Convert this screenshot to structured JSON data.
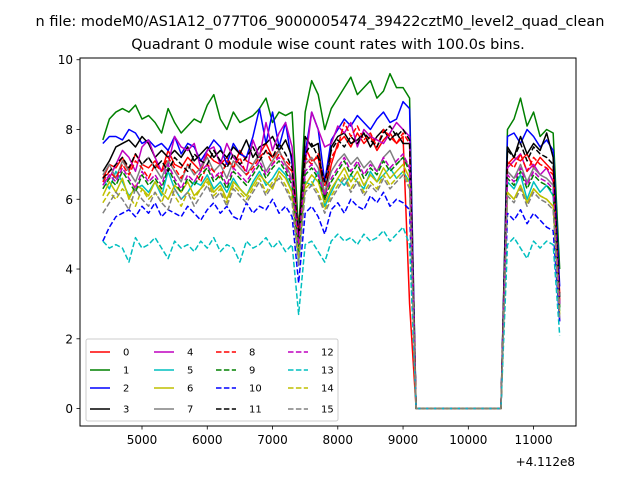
{
  "suptitle": "n file: modeM0/AS1A12_077T06_9000005474_39422cztM0_level2_quad_clean",
  "chart_data": {
    "type": "line",
    "title": "Quadrant 0 module wise count rates with 100.0s bins.",
    "xlabel": "",
    "ylabel": "",
    "x_offset_label": "+4.112e8",
    "xlim": [
      4050,
      11650
    ],
    "ylim": [
      -0.5,
      10.05
    ],
    "xticks": [
      5000,
      6000,
      7000,
      8000,
      9000,
      10000,
      11000
    ],
    "yticks": [
      0,
      2,
      4,
      6,
      8,
      10
    ],
    "grid": false,
    "legend_position": "lower-left",
    "x": [
      4400,
      4500,
      4600,
      4700,
      4800,
      4900,
      5000,
      5100,
      5200,
      5300,
      5400,
      5500,
      5600,
      5700,
      5800,
      5900,
      6000,
      6100,
      6200,
      6300,
      6400,
      6500,
      6600,
      6700,
      6800,
      6900,
      7000,
      7100,
      7200,
      7300,
      7400,
      7500,
      7600,
      7700,
      7800,
      7900,
      8000,
      8100,
      8200,
      8300,
      8400,
      8500,
      8600,
      8700,
      8800,
      8900,
      9000,
      9100,
      9200,
      9300,
      9400,
      9500,
      9600,
      9700,
      9800,
      9900,
      10000,
      10100,
      10200,
      10300,
      10400,
      10500,
      10600,
      10700,
      10800,
      10900,
      11000,
      11100,
      11200,
      11300,
      11400
    ],
    "series": [
      {
        "name": "0",
        "color": "#ff0000",
        "dash": false,
        "values": [
          6.6,
          7.0,
          6.9,
          7.2,
          6.8,
          7.3,
          7.0,
          6.9,
          7.1,
          6.8,
          7.4,
          7.0,
          6.9,
          7.2,
          7.0,
          6.8,
          7.3,
          7.1,
          7.0,
          7.2,
          6.9,
          7.4,
          7.1,
          7.0,
          7.3,
          7.6,
          7.2,
          7.4,
          7.0,
          6.8,
          5.2,
          7.5,
          7.1,
          7.2,
          6.0,
          7.0,
          7.6,
          7.8,
          7.5,
          7.9,
          7.6,
          7.8,
          7.4,
          7.7,
          7.9,
          7.6,
          7.8,
          3.0,
          0,
          0,
          0,
          0,
          0,
          0,
          0,
          0,
          0,
          0,
          0,
          0,
          0,
          0,
          7.0,
          7.2,
          7.1,
          7.3,
          6.9,
          7.2,
          7.0,
          6.8,
          3.3
        ]
      },
      {
        "name": "1",
        "color": "#008000",
        "dash": false,
        "values": [
          7.7,
          8.3,
          8.5,
          8.6,
          8.5,
          8.7,
          8.3,
          8.4,
          8.2,
          7.9,
          8.6,
          8.2,
          7.9,
          8.1,
          8.3,
          8.2,
          8.7,
          9.0,
          8.3,
          8.0,
          8.5,
          8.2,
          8.3,
          8.4,
          8.6,
          8.9,
          8.2,
          8.5,
          8.4,
          8.5,
          5.0,
          8.5,
          9.4,
          9.0,
          8.0,
          8.6,
          8.9,
          9.2,
          9.5,
          9.0,
          9.2,
          9.4,
          8.9,
          9.1,
          9.6,
          9.2,
          9.2,
          8.9,
          0,
          0,
          0,
          0,
          0,
          0,
          0,
          0,
          0,
          0,
          0,
          0,
          0,
          0,
          8.0,
          8.3,
          8.9,
          8.1,
          8.5,
          7.8,
          8.0,
          7.9,
          4.0
        ]
      },
      {
        "name": "2",
        "color": "#0000ff",
        "dash": false,
        "values": [
          7.6,
          7.8,
          7.8,
          7.7,
          8.0,
          7.9,
          7.6,
          7.7,
          7.5,
          7.6,
          7.4,
          7.8,
          7.3,
          7.6,
          7.5,
          7.1,
          7.4,
          7.7,
          7.5,
          7.0,
          7.6,
          7.3,
          7.2,
          7.8,
          8.6,
          7.6,
          8.5,
          7.5,
          8.2,
          7.0,
          5.0,
          7.3,
          8.5,
          8.0,
          6.5,
          7.7,
          8.0,
          8.3,
          8.1,
          8.4,
          8.2,
          8.0,
          8.3,
          8.5,
          8.2,
          8.3,
          8.8,
          8.6,
          0,
          0,
          0,
          0,
          0,
          0,
          0,
          0,
          0,
          0,
          0,
          0,
          0,
          0,
          7.8,
          7.9,
          7.6,
          8.0,
          7.8,
          7.5,
          7.7,
          7.4,
          3.5
        ]
      },
      {
        "name": "3",
        "color": "#000000",
        "dash": false,
        "values": [
          6.8,
          7.1,
          7.5,
          7.6,
          7.7,
          7.5,
          7.8,
          7.6,
          7.2,
          7.4,
          7.2,
          7.4,
          7.2,
          7.5,
          7.1,
          7.3,
          7.5,
          7.2,
          7.4,
          7.2,
          7.5,
          7.3,
          7.7,
          7.2,
          7.5,
          7.6,
          7.8,
          7.4,
          7.7,
          7.2,
          4.8,
          7.8,
          7.5,
          7.6,
          6.0,
          7.5,
          7.8,
          7.9,
          7.6,
          7.7,
          7.9,
          7.5,
          7.8,
          8.0,
          7.7,
          7.9,
          7.6,
          7.6,
          0,
          0,
          0,
          0,
          0,
          0,
          0,
          0,
          0,
          0,
          0,
          0,
          0,
          0,
          7.5,
          7.2,
          7.8,
          7.3,
          7.6,
          7.4,
          7.9,
          7.2,
          3.0
        ]
      },
      {
        "name": "4",
        "color": "#bf00bf",
        "dash": false,
        "values": [
          6.5,
          6.6,
          7.0,
          7.4,
          7.2,
          6.8,
          7.5,
          7.7,
          7.2,
          6.8,
          7.0,
          7.8,
          7.5,
          7.4,
          7.6,
          6.9,
          7.4,
          7.5,
          7.0,
          7.6,
          7.2,
          7.0,
          6.8,
          7.7,
          7.2,
          8.2,
          7.4,
          7.9,
          8.2,
          7.5,
          4.6,
          7.0,
          8.5,
          8.0,
          7.5,
          7.6,
          8.1,
          7.9,
          8.2,
          7.5,
          8.0,
          7.8,
          7.7,
          7.6,
          7.9,
          8.2,
          8.0,
          7.8,
          0,
          0,
          0,
          0,
          0,
          0,
          0,
          0,
          0,
          0,
          0,
          0,
          0,
          0,
          6.9,
          7.1,
          7.3,
          6.8,
          7.0,
          6.7,
          6.9,
          6.5,
          2.5
        ]
      },
      {
        "name": "5",
        "color": "#00bfbf",
        "dash": false,
        "values": [
          6.6,
          6.3,
          6.8,
          6.5,
          6.1,
          6.3,
          6.4,
          6.2,
          6.5,
          6.1,
          6.8,
          6.3,
          6.0,
          6.2,
          6.5,
          6.4,
          6.7,
          6.3,
          6.5,
          6.2,
          6.6,
          6.3,
          6.1,
          6.5,
          6.8,
          6.4,
          6.6,
          6.9,
          6.7,
          6.2,
          4.2,
          6.5,
          6.4,
          6.8,
          5.8,
          6.2,
          6.6,
          6.4,
          6.7,
          6.5,
          6.3,
          6.8,
          6.5,
          6.7,
          6.9,
          6.6,
          6.8,
          6.5,
          0,
          0,
          0,
          0,
          0,
          0,
          0,
          0,
          0,
          0,
          0,
          0,
          0,
          0,
          6.5,
          6.3,
          6.7,
          6.0,
          6.5,
          6.2,
          6.4,
          6.1,
          2.8
        ]
      },
      {
        "name": "6",
        "color": "#bfbf00",
        "dash": false,
        "values": [
          6.1,
          6.5,
          6.2,
          6.6,
          6.0,
          6.4,
          6.3,
          6.1,
          6.5,
          6.2,
          6.0,
          6.4,
          6.2,
          6.5,
          6.1,
          6.3,
          6.6,
          6.2,
          6.4,
          6.0,
          6.5,
          6.3,
          6.1,
          6.4,
          6.7,
          6.5,
          6.3,
          6.8,
          6.6,
          6.2,
          4.5,
          6.4,
          6.7,
          6.5,
          5.9,
          6.3,
          6.6,
          6.9,
          6.5,
          6.8,
          6.4,
          6.7,
          6.5,
          6.9,
          6.6,
          6.8,
          7.0,
          6.6,
          0,
          0,
          0,
          0,
          0,
          0,
          0,
          0,
          0,
          0,
          0,
          0,
          0,
          0,
          6.2,
          6.0,
          6.4,
          5.9,
          6.3,
          6.1,
          6.0,
          5.8,
          2.7
        ]
      },
      {
        "name": "7",
        "color": "#808080",
        "dash": false,
        "values": [
          6.7,
          7.0,
          6.6,
          7.1,
          6.8,
          6.5,
          7.0,
          7.2,
          6.9,
          6.6,
          7.1,
          6.8,
          6.5,
          7.0,
          6.7,
          6.9,
          7.2,
          6.8,
          7.0,
          6.6,
          7.1,
          6.9,
          6.7,
          7.0,
          7.3,
          6.8,
          7.1,
          7.4,
          7.0,
          6.6,
          4.6,
          7.0,
          7.2,
          6.9,
          6.2,
          6.8,
          7.1,
          7.3,
          7.0,
          7.2,
          6.9,
          7.1,
          6.8,
          7.2,
          7.4,
          7.0,
          7.2,
          6.9,
          0,
          0,
          0,
          0,
          0,
          0,
          0,
          0,
          0,
          0,
          0,
          0,
          0,
          0,
          6.8,
          6.6,
          7.0,
          6.5,
          6.9,
          6.7,
          6.6,
          6.4,
          2.9
        ]
      },
      {
        "name": "8",
        "color": "#ff0000",
        "dash": true,
        "values": [
          6.5,
          6.8,
          6.6,
          7.0,
          6.7,
          7.1,
          6.9,
          6.6,
          7.0,
          6.8,
          7.2,
          6.9,
          6.6,
          7.0,
          6.8,
          6.5,
          7.0,
          6.8,
          6.6,
          7.1,
          6.9,
          7.2,
          6.7,
          6.9,
          7.2,
          7.4,
          7.0,
          7.3,
          7.1,
          6.9,
          5.0,
          7.2,
          7.0,
          7.3,
          6.4,
          7.2,
          7.5,
          8.2,
          7.8,
          8.1,
          7.7,
          7.9,
          7.5,
          8.0,
          7.8,
          7.6,
          7.9,
          7.6,
          0,
          0,
          0,
          0,
          0,
          0,
          0,
          0,
          0,
          0,
          0,
          0,
          0,
          0,
          7.1,
          6.9,
          7.3,
          6.8,
          7.2,
          7.0,
          6.9,
          6.7,
          3.1
        ]
      },
      {
        "name": "9",
        "color": "#008000",
        "dash": true,
        "values": [
          6.3,
          6.6,
          6.4,
          6.8,
          6.5,
          6.2,
          6.7,
          6.4,
          6.6,
          6.3,
          6.9,
          6.5,
          6.2,
          6.6,
          6.4,
          6.7,
          6.9,
          6.5,
          6.7,
          6.3,
          6.8,
          6.6,
          6.4,
          6.7,
          7.0,
          6.6,
          6.9,
          7.1,
          6.8,
          6.4,
          4.5,
          6.7,
          6.9,
          6.6,
          6.0,
          6.5,
          6.8,
          7.1,
          6.7,
          7.0,
          6.6,
          6.9,
          6.7,
          7.1,
          6.8,
          7.0,
          7.2,
          6.8,
          0,
          0,
          0,
          0,
          0,
          0,
          0,
          0,
          0,
          0,
          0,
          0,
          0,
          0,
          6.6,
          6.4,
          6.8,
          6.3,
          6.7,
          6.5,
          6.4,
          6.2,
          2.9
        ]
      },
      {
        "name": "10",
        "color": "#0000ff",
        "dash": true,
        "values": [
          4.8,
          5.2,
          5.5,
          5.6,
          5.7,
          5.5,
          5.8,
          5.6,
          5.9,
          5.5,
          5.7,
          5.6,
          5.5,
          5.8,
          5.6,
          5.4,
          5.7,
          5.9,
          5.6,
          5.8,
          5.5,
          5.4,
          5.9,
          5.6,
          5.8,
          5.7,
          6.0,
          5.6,
          5.8,
          5.5,
          3.6,
          5.6,
          5.8,
          5.5,
          5.0,
          5.7,
          5.9,
          5.6,
          6.0,
          5.8,
          5.7,
          6.1,
          5.9,
          6.2,
          5.8,
          6.0,
          5.9,
          5.7,
          0,
          0,
          0,
          0,
          0,
          0,
          0,
          0,
          0,
          0,
          0,
          0,
          0,
          0,
          5.6,
          5.4,
          5.7,
          5.3,
          5.6,
          5.4,
          5.2,
          5.1,
          2.5
        ]
      },
      {
        "name": "11",
        "color": "#000000",
        "dash": true,
        "values": [
          6.6,
          6.8,
          7.0,
          7.2,
          6.9,
          7.3,
          7.0,
          7.2,
          6.9,
          7.1,
          6.8,
          7.2,
          7.0,
          6.8,
          7.3,
          7.1,
          7.0,
          7.4,
          7.1,
          6.9,
          7.3,
          7.0,
          7.2,
          7.5,
          7.1,
          7.4,
          7.2,
          7.6,
          7.3,
          6.9,
          4.9,
          7.3,
          7.6,
          7.2,
          6.5,
          7.4,
          7.7,
          7.5,
          7.8,
          7.6,
          7.9,
          7.7,
          7.5,
          7.9,
          8.1,
          7.8,
          8.0,
          7.7,
          0,
          0,
          0,
          0,
          0,
          0,
          0,
          0,
          0,
          0,
          0,
          0,
          0,
          0,
          7.4,
          7.2,
          7.6,
          7.1,
          7.5,
          7.3,
          7.2,
          7.0,
          3.2
        ]
      },
      {
        "name": "12",
        "color": "#bf00bf",
        "dash": true,
        "values": [
          6.4,
          6.7,
          6.5,
          6.9,
          6.6,
          6.3,
          6.8,
          6.5,
          6.7,
          6.4,
          7.0,
          6.6,
          6.3,
          6.7,
          6.5,
          6.8,
          7.0,
          6.6,
          6.8,
          6.4,
          6.9,
          6.7,
          6.5,
          6.8,
          7.1,
          6.7,
          7.0,
          7.2,
          6.9,
          6.5,
          4.7,
          6.8,
          7.0,
          6.7,
          6.1,
          6.6,
          6.9,
          7.2,
          6.8,
          7.1,
          6.7,
          7.0,
          6.8,
          7.2,
          6.9,
          7.1,
          7.3,
          6.9,
          0,
          0,
          0,
          0,
          0,
          0,
          0,
          0,
          0,
          0,
          0,
          0,
          0,
          0,
          6.7,
          6.5,
          6.9,
          6.4,
          6.8,
          6.6,
          6.5,
          6.3,
          3.0
        ]
      },
      {
        "name": "13",
        "color": "#00bfbf",
        "dash": true,
        "values": [
          4.8,
          4.6,
          4.7,
          4.6,
          4.2,
          4.9,
          4.6,
          4.7,
          4.9,
          4.6,
          4.3,
          4.8,
          4.6,
          4.7,
          4.5,
          4.8,
          4.6,
          4.9,
          4.5,
          4.7,
          4.6,
          4.2,
          4.8,
          4.6,
          4.7,
          4.9,
          4.6,
          4.8,
          4.5,
          4.7,
          2.7,
          4.7,
          4.8,
          4.5,
          4.2,
          4.8,
          5.0,
          4.8,
          4.9,
          4.7,
          5.0,
          4.8,
          4.9,
          5.1,
          4.8,
          5.0,
          5.2,
          4.7,
          0,
          0,
          0,
          0,
          0,
          0,
          0,
          0,
          0,
          0,
          0,
          0,
          0,
          0,
          4.7,
          4.9,
          4.6,
          4.3,
          4.8,
          4.6,
          4.8,
          4.7,
          2.1
        ]
      },
      {
        "name": "14",
        "color": "#bfbf00",
        "dash": true,
        "values": [
          5.9,
          6.2,
          6.0,
          6.3,
          6.1,
          5.8,
          6.3,
          6.0,
          6.2,
          5.9,
          6.4,
          6.1,
          5.8,
          6.2,
          6.0,
          6.3,
          6.5,
          6.1,
          6.3,
          5.9,
          6.4,
          6.2,
          6.0,
          6.3,
          6.6,
          6.2,
          6.5,
          6.7,
          6.4,
          6.0,
          4.3,
          6.3,
          6.5,
          6.2,
          5.7,
          6.1,
          6.4,
          6.7,
          6.3,
          6.6,
          6.2,
          6.5,
          6.3,
          6.7,
          6.4,
          6.6,
          6.8,
          6.4,
          0,
          0,
          0,
          0,
          0,
          0,
          0,
          0,
          0,
          0,
          0,
          0,
          0,
          0,
          6.2,
          6.0,
          6.4,
          5.9,
          6.3,
          6.1,
          6.0,
          5.8,
          2.7
        ]
      },
      {
        "name": "15",
        "color": "#808080",
        "dash": true,
        "values": [
          5.6,
          5.9,
          6.2,
          6.0,
          5.7,
          6.3,
          6.0,
          5.8,
          6.2,
          5.9,
          5.7,
          6.3,
          6.0,
          6.2,
          5.8,
          6.1,
          6.4,
          6.0,
          6.2,
          5.8,
          6.3,
          6.1,
          5.9,
          6.2,
          6.5,
          6.1,
          6.4,
          6.6,
          6.3,
          5.9,
          4.1,
          6.2,
          6.4,
          6.1,
          5.6,
          6.0,
          6.3,
          6.6,
          6.2,
          6.5,
          6.1,
          6.4,
          6.2,
          6.6,
          6.3,
          6.5,
          6.7,
          6.3,
          0,
          0,
          0,
          0,
          0,
          0,
          0,
          0,
          0,
          0,
          0,
          0,
          0,
          0,
          6.1,
          5.9,
          6.3,
          5.8,
          6.2,
          6.0,
          5.9,
          5.7,
          2.6
        ]
      }
    ]
  }
}
